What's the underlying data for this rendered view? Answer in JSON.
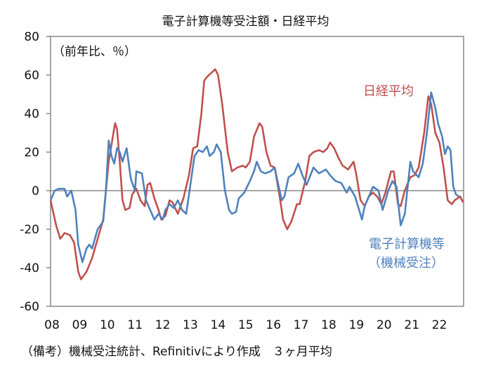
{
  "chart_data": {
    "type": "line",
    "title": "電子計算機等受注額・日経平均",
    "ylabel": "（前年比、％）",
    "xlabel": "",
    "ylim": [
      -60,
      80
    ],
    "yticks": [
      80,
      60,
      40,
      20,
      0,
      -20,
      -40,
      -60
    ],
    "xlim": [
      2008,
      2022.9
    ],
    "xtick_labels": [
      "08",
      "09",
      "10",
      "11",
      "12",
      "13",
      "14",
      "15",
      "16",
      "17",
      "18",
      "19",
      "20",
      "21",
      "22"
    ],
    "grid": false,
    "annotations": [
      "日経平均",
      "電子計算機等",
      "（機械受注）"
    ],
    "note": "（備考）機械受注統計、Refinitivにより作成　３ヶ月平均",
    "series": [
      {
        "name": "日経平均",
        "color": "#c0504d",
        "points": [
          [
            2008.0,
            -5
          ],
          [
            2008.2,
            -18
          ],
          [
            2008.35,
            -25
          ],
          [
            2008.5,
            -22
          ],
          [
            2008.7,
            -23
          ],
          [
            2008.85,
            -27
          ],
          [
            2009.0,
            -42
          ],
          [
            2009.1,
            -46
          ],
          [
            2009.3,
            -42
          ],
          [
            2009.5,
            -35
          ],
          [
            2009.7,
            -25
          ],
          [
            2009.9,
            -15
          ],
          [
            2010.0,
            0
          ],
          [
            2010.1,
            15
          ],
          [
            2010.25,
            28
          ],
          [
            2010.33,
            35
          ],
          [
            2010.4,
            32
          ],
          [
            2010.5,
            15
          ],
          [
            2010.6,
            -5
          ],
          [
            2010.7,
            -10
          ],
          [
            2010.85,
            -9
          ],
          [
            2010.95,
            -2
          ],
          [
            2011.1,
            1
          ],
          [
            2011.25,
            -5
          ],
          [
            2011.4,
            -8
          ],
          [
            2011.5,
            3
          ],
          [
            2011.6,
            4
          ],
          [
            2011.75,
            -4
          ],
          [
            2011.9,
            -10
          ],
          [
            2012.0,
            -15
          ],
          [
            2012.15,
            -13
          ],
          [
            2012.3,
            -5
          ],
          [
            2012.4,
            -6
          ],
          [
            2012.6,
            -12
          ],
          [
            2012.8,
            -4
          ],
          [
            2013.0,
            8
          ],
          [
            2013.15,
            22
          ],
          [
            2013.3,
            23
          ],
          [
            2013.45,
            40
          ],
          [
            2013.55,
            57
          ],
          [
            2013.65,
            59
          ],
          [
            2013.8,
            61
          ],
          [
            2013.95,
            63
          ],
          [
            2014.05,
            60
          ],
          [
            2014.2,
            45
          ],
          [
            2014.4,
            20
          ],
          [
            2014.55,
            10
          ],
          [
            2014.75,
            12
          ],
          [
            2014.95,
            13
          ],
          [
            2015.05,
            12
          ],
          [
            2015.2,
            15
          ],
          [
            2015.35,
            28
          ],
          [
            2015.55,
            35
          ],
          [
            2015.65,
            33
          ],
          [
            2015.8,
            20
          ],
          [
            2015.95,
            13
          ],
          [
            2016.1,
            12
          ],
          [
            2016.3,
            -5
          ],
          [
            2016.4,
            -15
          ],
          [
            2016.55,
            -20
          ],
          [
            2016.7,
            -16
          ],
          [
            2016.9,
            -7
          ],
          [
            2017.0,
            -7
          ],
          [
            2017.2,
            5
          ],
          [
            2017.35,
            18
          ],
          [
            2017.5,
            20
          ],
          [
            2017.7,
            21
          ],
          [
            2017.85,
            20
          ],
          [
            2018.0,
            22
          ],
          [
            2018.1,
            25
          ],
          [
            2018.25,
            22
          ],
          [
            2018.4,
            17
          ],
          [
            2018.55,
            13
          ],
          [
            2018.75,
            11
          ],
          [
            2018.95,
            15
          ],
          [
            2019.05,
            8
          ],
          [
            2019.2,
            -5
          ],
          [
            2019.35,
            -8
          ],
          [
            2019.5,
            -3
          ],
          [
            2019.65,
            -1
          ],
          [
            2019.8,
            -3
          ],
          [
            2019.95,
            -7
          ],
          [
            2020.1,
            -1
          ],
          [
            2020.3,
            10
          ],
          [
            2020.4,
            10
          ],
          [
            2020.55,
            -7
          ],
          [
            2020.65,
            -8
          ],
          [
            2020.8,
            0
          ],
          [
            2021.0,
            7
          ],
          [
            2021.15,
            8
          ],
          [
            2021.3,
            12
          ],
          [
            2021.5,
            30
          ],
          [
            2021.65,
            49
          ],
          [
            2021.75,
            45
          ],
          [
            2021.9,
            30
          ],
          [
            2022.05,
            25
          ],
          [
            2022.2,
            12
          ],
          [
            2022.35,
            -5
          ],
          [
            2022.5,
            -7
          ],
          [
            2022.6,
            -5
          ],
          [
            2022.8,
            -3
          ],
          [
            2022.9,
            -6
          ]
        ]
      },
      {
        "name": "電子計算機等（機械受注）",
        "color": "#4f81bd",
        "points": [
          [
            2008.0,
            -5
          ],
          [
            2008.15,
            0
          ],
          [
            2008.3,
            1
          ],
          [
            2008.5,
            1
          ],
          [
            2008.6,
            -3
          ],
          [
            2008.75,
            0
          ],
          [
            2008.9,
            -10
          ],
          [
            2009.0,
            -28
          ],
          [
            2009.15,
            -37
          ],
          [
            2009.3,
            -30
          ],
          [
            2009.4,
            -28
          ],
          [
            2009.5,
            -30
          ],
          [
            2009.7,
            -20
          ],
          [
            2009.9,
            -16
          ],
          [
            2010.0,
            0
          ],
          [
            2010.1,
            26
          ],
          [
            2010.2,
            18
          ],
          [
            2010.3,
            14
          ],
          [
            2010.4,
            22
          ],
          [
            2010.5,
            20
          ],
          [
            2010.6,
            15
          ],
          [
            2010.75,
            22
          ],
          [
            2010.9,
            6
          ],
          [
            2011.05,
            0
          ],
          [
            2011.1,
            10
          ],
          [
            2011.3,
            9
          ],
          [
            2011.45,
            -5
          ],
          [
            2011.6,
            -10
          ],
          [
            2011.75,
            -15
          ],
          [
            2011.9,
            -12
          ],
          [
            2012.05,
            -15
          ],
          [
            2012.15,
            -10
          ],
          [
            2012.3,
            -7
          ],
          [
            2012.45,
            -9
          ],
          [
            2012.6,
            -5
          ],
          [
            2012.75,
            -10
          ],
          [
            2012.9,
            -12
          ],
          [
            2013.05,
            3
          ],
          [
            2013.2,
            18
          ],
          [
            2013.35,
            21
          ],
          [
            2013.5,
            20
          ],
          [
            2013.65,
            23
          ],
          [
            2013.75,
            18
          ],
          [
            2013.9,
            20
          ],
          [
            2014.0,
            24
          ],
          [
            2014.15,
            20
          ],
          [
            2014.3,
            0
          ],
          [
            2014.45,
            -10
          ],
          [
            2014.55,
            -12
          ],
          [
            2014.7,
            -11
          ],
          [
            2014.8,
            -4
          ],
          [
            2015.0,
            -1
          ],
          [
            2015.2,
            5
          ],
          [
            2015.35,
            10
          ],
          [
            2015.45,
            15
          ],
          [
            2015.6,
            10
          ],
          [
            2015.75,
            9
          ],
          [
            2015.95,
            10
          ],
          [
            2016.1,
            12
          ],
          [
            2016.2,
            5
          ],
          [
            2016.35,
            -5
          ],
          [
            2016.45,
            -3
          ],
          [
            2016.6,
            7
          ],
          [
            2016.8,
            9
          ],
          [
            2016.95,
            14
          ],
          [
            2017.1,
            8
          ],
          [
            2017.25,
            3
          ],
          [
            2017.5,
            12
          ],
          [
            2017.7,
            9
          ],
          [
            2017.95,
            11
          ],
          [
            2018.1,
            8
          ],
          [
            2018.3,
            5
          ],
          [
            2018.5,
            4
          ],
          [
            2018.7,
            -1
          ],
          [
            2018.8,
            2
          ],
          [
            2019.0,
            -3
          ],
          [
            2019.15,
            -10
          ],
          [
            2019.25,
            -15
          ],
          [
            2019.35,
            -8
          ],
          [
            2019.5,
            -3
          ],
          [
            2019.65,
            2
          ],
          [
            2019.85,
            0
          ],
          [
            2020.0,
            -10
          ],
          [
            2020.2,
            0
          ],
          [
            2020.35,
            5
          ],
          [
            2020.5,
            2
          ],
          [
            2020.65,
            -18
          ],
          [
            2020.8,
            -12
          ],
          [
            2021.0,
            15
          ],
          [
            2021.1,
            10
          ],
          [
            2021.3,
            7
          ],
          [
            2021.45,
            14
          ],
          [
            2021.6,
            30
          ],
          [
            2021.75,
            51
          ],
          [
            2021.9,
            43
          ],
          [
            2022.0,
            35
          ],
          [
            2022.15,
            28
          ],
          [
            2022.25,
            19
          ],
          [
            2022.35,
            23
          ],
          [
            2022.45,
            21
          ],
          [
            2022.55,
            2
          ],
          [
            2022.65,
            -2
          ],
          [
            2022.75,
            -3
          ]
        ]
      }
    ]
  }
}
